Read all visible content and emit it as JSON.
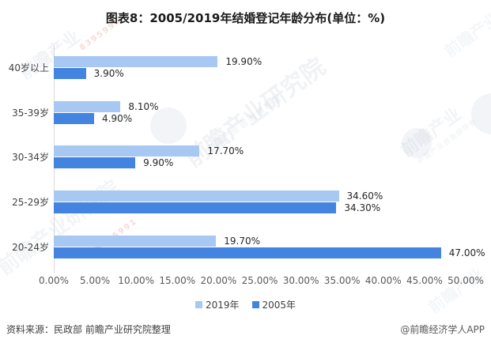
{
  "title": "图表8：2005/2019年结婚登记年龄分布(单位：%)",
  "chart_data": {
    "type": "bar",
    "orientation": "horizontal",
    "title": "图表8：2005/2019年结婚登记年龄分布(单位：%)",
    "categories": [
      "40岁以上",
      "35-39岁",
      "30-34岁",
      "25-29岁",
      "20-24岁"
    ],
    "series": [
      {
        "name": "2019年",
        "color": "#A6C8F3",
        "values": [
          19.9,
          8.1,
          17.7,
          34.6,
          19.7
        ],
        "labels": [
          "19.90%",
          "8.10%",
          "17.70%",
          "34.60%",
          "19.70%"
        ]
      },
      {
        "name": "2005年",
        "color": "#4384E1",
        "values": [
          3.9,
          4.9,
          9.9,
          34.3,
          47.0
        ],
        "labels": [
          "3.90%",
          "4.90%",
          "9.90%",
          "34.30%",
          "47.00%"
        ]
      }
    ],
    "xlim": [
      0,
      50
    ],
    "xticks": [
      0,
      5,
      10,
      15,
      20,
      25,
      30,
      35,
      40,
      45,
      50
    ],
    "xtick_labels": [
      "0.00%",
      "5.00%",
      "10.00%",
      "15.00%",
      "20.00%",
      "25.00%",
      "30.00%",
      "35.00%",
      "40.00%",
      "45.00%",
      "50.00%"
    ],
    "xlabel": "",
    "ylabel": "",
    "grid": false,
    "legend_position": "bottom",
    "value_label_color": "#262626",
    "tick_label_color": "#595959",
    "axis_line_color": "#d9d9d9"
  },
  "footer": {
    "source": "资料来源：民政部 前瞻产业研究院整理",
    "credit": "@前瞻经济学人APP"
  },
  "watermark": {
    "text": "前瞻产业研究院",
    "short_text": "前瞻产业",
    "subtext": "中国产业咨询领导者",
    "digits": "8395991"
  }
}
